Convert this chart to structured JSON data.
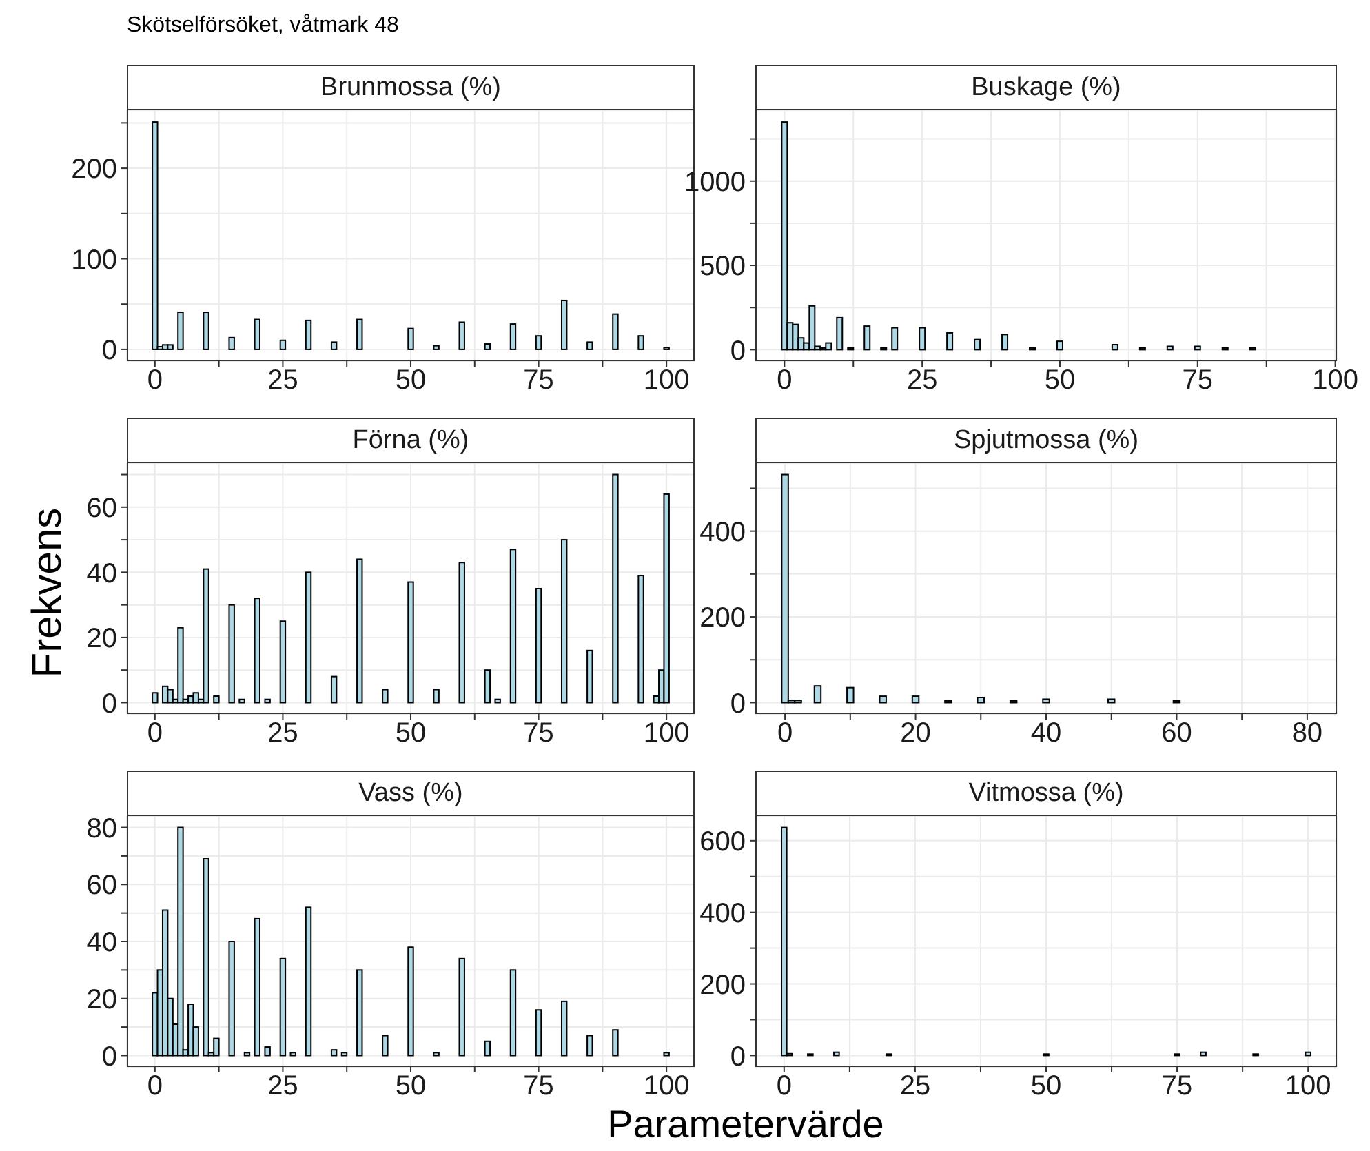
{
  "chart_data": [
    {
      "type": "histogram",
      "title": "Brunmossa (%)",
      "annotations": [
        "Skötselförsöket, våtmark 48"
      ],
      "color": "#add8e6",
      "grid": true,
      "bins": [
        -0.5,
        0.5,
        1.5,
        2.5,
        3.5,
        4.5,
        5.5,
        9.5,
        10.5,
        14.5,
        15.5,
        19.5,
        20.5,
        24.5,
        25.5,
        29.5,
        30.5,
        34.5,
        35.5,
        39.5,
        40.5,
        49.5,
        50.5,
        54.5,
        55.5,
        59.5,
        60.5,
        64.5,
        65.5,
        69.5,
        70.5,
        74.5,
        75.5,
        79.5,
        80.5,
        84.5,
        85.5,
        89.5,
        90.5,
        94.5,
        95.5,
        99.5,
        100.5
      ],
      "values": [
        251,
        3,
        5,
        5,
        0,
        41,
        0,
        41,
        0,
        13,
        0,
        33,
        0,
        10,
        0,
        32,
        0,
        8,
        0,
        33,
        0,
        23,
        0,
        4,
        0,
        30,
        0,
        6,
        0,
        28,
        0,
        15,
        0,
        54,
        0,
        8,
        0,
        39,
        0,
        15,
        0,
        2
      ],
      "xlim": [
        -5.5,
        105.5
      ],
      "xticks": [
        0,
        {
          "value": 12.5,
          "label": null
        },
        25,
        {
          "value": 37.5,
          "label": null
        },
        50,
        {
          "value": 62.5,
          "label": null
        },
        75,
        {
          "value": 87.5,
          "label": null
        },
        100
      ],
      "ylim": [
        -13,
        264
      ],
      "yticks": [
        0,
        {
          "value": 50,
          "label": null
        },
        100,
        {
          "value": 150,
          "label": null
        },
        200,
        {
          "value": 250,
          "label": null
        }
      ]
    },
    {
      "type": "histogram",
      "title": "Buskage (%)",
      "color": "#add8e6",
      "grid": true,
      "bins": [
        -0.5,
        0.5,
        1.5,
        2.5,
        3.5,
        4.5,
        5.5,
        6.5,
        7.5,
        8.5,
        9.5,
        10.5,
        11.5,
        12.5,
        14.5,
        15.5,
        17.5,
        18.5,
        19.5,
        20.5,
        24.5,
        25.5,
        29.5,
        30.5,
        34.5,
        35.5,
        39.5,
        40.5,
        44.5,
        45.5,
        49.5,
        50.5,
        59.5,
        60.5,
        64.5,
        65.5,
        69.5,
        70.5,
        74.5,
        75.5,
        79.5,
        80.5,
        84.5,
        85.5
      ],
      "values": [
        1350,
        160,
        150,
        70,
        40,
        260,
        20,
        10,
        40,
        0,
        190,
        0,
        10,
        0,
        140,
        0,
        10,
        0,
        130,
        0,
        130,
        0,
        100,
        0,
        60,
        0,
        90,
        0,
        10,
        0,
        50,
        0,
        30,
        0,
        10,
        0,
        20,
        0,
        20,
        0,
        10,
        0,
        10
      ],
      "xlim": [
        -5.3,
        100.3
      ],
      "xticks": [
        0,
        {
          "value": 12.5,
          "label": null
        },
        25,
        {
          "value": 37.5,
          "label": null
        },
        50,
        {
          "value": 62.5,
          "label": null
        },
        75,
        {
          "value": 87.5,
          "label": null
        },
        100
      ],
      "ylim": [
        -68,
        1420
      ],
      "yticks": [
        0,
        {
          "value": 250,
          "label": null
        },
        500,
        {
          "value": 750,
          "label": null
        },
        1000,
        {
          "value": 1250,
          "label": null
        }
      ]
    },
    {
      "type": "histogram",
      "title": "Förna (%)",
      "ylabel": "Frekvens",
      "color": "#add8e6",
      "grid": true,
      "bins": [
        -0.5,
        0.5,
        1.5,
        2.5,
        3.5,
        4.5,
        5.5,
        6.5,
        7.5,
        8.5,
        9.5,
        10.5,
        11.5,
        12.5,
        14.5,
        15.5,
        16.5,
        17.5,
        19.5,
        20.5,
        21.5,
        22.5,
        24.5,
        25.5,
        29.5,
        30.5,
        34.5,
        35.5,
        39.5,
        40.5,
        44.5,
        45.5,
        49.5,
        50.5,
        54.5,
        55.5,
        59.5,
        60.5,
        64.5,
        65.5,
        66.5,
        67.5,
        69.5,
        70.5,
        74.5,
        75.5,
        79.5,
        80.5,
        84.5,
        85.5,
        89.5,
        90.5,
        94.5,
        95.5,
        97.5,
        98.5,
        99.5,
        100.5
      ],
      "values": [
        3,
        0,
        5,
        4,
        1,
        23,
        1,
        2,
        3,
        1,
        41,
        0,
        2,
        0,
        30,
        0,
        1,
        0,
        32,
        0,
        1,
        0,
        25,
        0,
        40,
        0,
        8,
        0,
        44,
        0,
        4,
        0,
        37,
        0,
        4,
        0,
        43,
        0,
        10,
        0,
        1,
        0,
        47,
        0,
        35,
        0,
        50,
        0,
        16,
        0,
        70,
        0,
        39,
        0,
        2,
        10,
        64
      ],
      "xlim": [
        -5.5,
        105.5
      ],
      "xticks": [
        0,
        {
          "value": 12.5,
          "label": null
        },
        25,
        {
          "value": 37.5,
          "label": null
        },
        50,
        {
          "value": 62.5,
          "label": null
        },
        75,
        {
          "value": 87.5,
          "label": null
        },
        100
      ],
      "ylim": [
        -3.5,
        73.5
      ],
      "yticks": [
        0,
        {
          "value": 10,
          "label": null
        },
        20,
        {
          "value": 30,
          "label": null
        },
        40,
        {
          "value": 50,
          "label": null
        },
        60,
        {
          "value": 70,
          "label": null
        }
      ]
    },
    {
      "type": "histogram",
      "title": "Spjutmossa (%)",
      "color": "#add8e6",
      "grid": true,
      "bins": [
        -0.5,
        0.5,
        1.5,
        2.5,
        4.5,
        5.5,
        9.5,
        10.5,
        14.5,
        15.5,
        19.5,
        20.5,
        24.5,
        25.5,
        29.5,
        30.5,
        34.5,
        35.5,
        39.5,
        40.5,
        49.5,
        50.5,
        59.5,
        60.5
      ],
      "values": [
        532,
        5,
        5,
        0,
        39,
        0,
        35,
        0,
        15,
        0,
        15,
        0,
        4,
        0,
        12,
        0,
        4,
        0,
        8,
        0,
        8,
        0,
        4
      ],
      "xlim": [
        -4.55,
        84.55
      ],
      "xticks": [
        0,
        {
          "value": 10,
          "label": null
        },
        20,
        {
          "value": 30,
          "label": null
        },
        40,
        {
          "value": 50,
          "label": null
        },
        60,
        {
          "value": 70,
          "label": null
        },
        80
      ],
      "ylim": [
        -26.6,
        558.6
      ],
      "yticks": [
        0,
        {
          "value": 100,
          "label": null
        },
        200,
        {
          "value": 300,
          "label": null
        },
        400,
        {
          "value": 500,
          "label": null
        }
      ]
    },
    {
      "type": "histogram",
      "title": "Vass (%)",
      "xlabel": "Parametervärde",
      "color": "#add8e6",
      "grid": true,
      "bins": [
        -0.5,
        0.5,
        1.5,
        2.5,
        3.5,
        4.5,
        5.5,
        6.5,
        7.5,
        8.5,
        9.5,
        10.5,
        11.5,
        12.5,
        14.5,
        15.5,
        17.5,
        18.5,
        19.5,
        20.5,
        21.5,
        22.5,
        24.5,
        25.5,
        26.5,
        27.5,
        29.5,
        30.5,
        34.5,
        35.5,
        36.5,
        37.5,
        39.5,
        40.5,
        44.5,
        45.5,
        49.5,
        50.5,
        54.5,
        55.5,
        59.5,
        60.5,
        64.5,
        65.5,
        69.5,
        70.5,
        74.5,
        75.5,
        79.5,
        80.5,
        84.5,
        85.5,
        89.5,
        90.5,
        99.5,
        100.5
      ],
      "values": [
        22,
        30,
        51,
        20,
        11,
        80,
        2,
        18,
        10,
        0,
        69,
        1,
        6,
        0,
        40,
        0,
        1,
        0,
        48,
        0,
        3,
        0,
        34,
        0,
        1,
        0,
        52,
        0,
        2,
        0,
        1,
        0,
        30,
        0,
        7,
        0,
        38,
        0,
        1,
        0,
        34,
        0,
        5,
        0,
        30,
        0,
        16,
        0,
        19,
        0,
        7,
        0,
        9,
        0,
        1
      ],
      "xlim": [
        -5.5,
        105.5
      ],
      "xticks": [
        0,
        {
          "value": 12.5,
          "label": null
        },
        25,
        {
          "value": 37.5,
          "label": null
        },
        50,
        {
          "value": 62.5,
          "label": null
        },
        75,
        {
          "value": 87.5,
          "label": null
        },
        100
      ],
      "ylim": [
        -4,
        84
      ],
      "yticks": [
        0,
        {
          "value": 10,
          "label": null
        },
        20,
        {
          "value": 30,
          "label": null
        },
        40,
        {
          "value": 50,
          "label": null
        },
        60,
        {
          "value": 70,
          "label": null
        },
        80
      ]
    },
    {
      "type": "histogram",
      "title": "Vitmossa (%)",
      "color": "#add8e6",
      "grid": true,
      "bins": [
        -0.5,
        0.5,
        1.5,
        4.5,
        5.5,
        9.5,
        10.5,
        19.5,
        20.5,
        49.5,
        50.5,
        74.5,
        75.5,
        79.5,
        80.5,
        89.5,
        90.5,
        99.5,
        100.5
      ],
      "values": [
        637,
        5,
        0,
        4,
        0,
        9,
        0,
        4,
        0,
        4,
        0,
        4,
        0,
        9,
        0,
        4,
        0,
        9
      ],
      "xlim": [
        -5.5,
        105.5
      ],
      "xticks": [
        0,
        {
          "value": 12.5,
          "label": null
        },
        25,
        {
          "value": 37.5,
          "label": null
        },
        50,
        {
          "value": 62.5,
          "label": null
        },
        75,
        {
          "value": 87.5,
          "label": null
        },
        100
      ],
      "ylim": [
        -32,
        669
      ],
      "yticks": [
        0,
        {
          "value": 100,
          "label": null
        },
        200,
        {
          "value": 300,
          "label": null
        },
        400,
        {
          "value": 500,
          "label": null
        },
        600
      ]
    }
  ]
}
